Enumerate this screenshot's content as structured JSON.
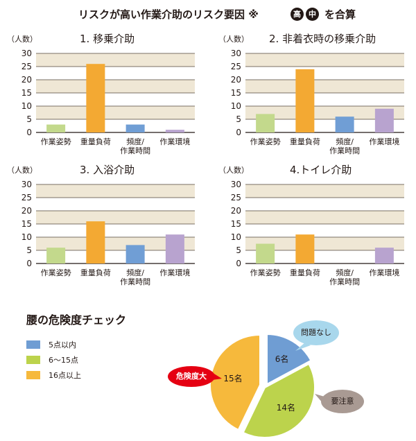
{
  "title": {
    "prefix": "リスクが高い作業介助のリスク要因 ※",
    "badge_high": "高",
    "badge_mid": "中",
    "suffix": "を合算"
  },
  "colors": {
    "band": "#efe7d5",
    "gridline": "#4f4337",
    "axis": "#231815",
    "posture": "#c3d98c",
    "weight": "#f3a933",
    "frequency": "#709ed5",
    "environment": "#b8a3cf",
    "pie_low": "#6f9dd3",
    "pie_mid": "#bcd34c",
    "pie_high": "#f6b93c",
    "callout_low": "#a8d7ec",
    "callout_mid": "#a99a93",
    "callout_high": "#e50012"
  },
  "chart_data": [
    {
      "type": "bar",
      "title": "1. 移乗介助",
      "ylabel": "（人数）",
      "ylim": [
        0,
        30
      ],
      "yticks": [
        0,
        5,
        10,
        15,
        20,
        25,
        30
      ],
      "categories": [
        "作業姿勢",
        "重量負荷",
        "頻度/作業時間",
        "作業環境"
      ],
      "category_lines": [
        [
          "作業姿勢"
        ],
        [
          "重量負荷"
        ],
        [
          "頻度/",
          "作業時間"
        ],
        [
          "作業環境"
        ]
      ],
      "values": [
        3,
        26,
        3,
        1
      ],
      "bar_colors": [
        "#c3d98c",
        "#f3a933",
        "#709ed5",
        "#b8a3cf"
      ],
      "grid": true
    },
    {
      "type": "bar",
      "title": "2. 非着衣時の移乗介助",
      "ylabel": "（人数）",
      "ylim": [
        0,
        30
      ],
      "yticks": [
        0,
        5,
        10,
        15,
        20,
        25,
        30
      ],
      "categories": [
        "作業姿勢",
        "重量負荷",
        "頻度/作業時間",
        "作業環境"
      ],
      "category_lines": [
        [
          "作業姿勢"
        ],
        [
          "重量負荷"
        ],
        [
          "頻度/",
          "作業時間"
        ],
        [
          "作業環境"
        ]
      ],
      "values": [
        7,
        24,
        6,
        9
      ],
      "bar_colors": [
        "#c3d98c",
        "#f3a933",
        "#709ed5",
        "#b8a3cf"
      ],
      "grid": true
    },
    {
      "type": "bar",
      "title": "3. 入浴介助",
      "ylabel": "（人数）",
      "ylim": [
        0,
        30
      ],
      "yticks": [
        0,
        5,
        10,
        15,
        20,
        25,
        30
      ],
      "categories": [
        "作業姿勢",
        "重量負荷",
        "頻度/作業時間",
        "作業環境"
      ],
      "category_lines": [
        [
          "作業姿勢"
        ],
        [
          "重量負荷"
        ],
        [
          "頻度/",
          "作業時間"
        ],
        [
          "作業環境"
        ]
      ],
      "values": [
        6,
        16,
        7,
        11
      ],
      "bar_colors": [
        "#c3d98c",
        "#f3a933",
        "#709ed5",
        "#b8a3cf"
      ],
      "grid": true
    },
    {
      "type": "bar",
      "title": "4.トイレ介助",
      "ylabel": "（人数）",
      "ylim": [
        0,
        30
      ],
      "yticks": [
        0,
        5,
        10,
        15,
        20,
        25,
        30
      ],
      "categories": [
        "作業姿勢",
        "重量負荷",
        "頻度/作業時間",
        "作業環境"
      ],
      "category_lines": [
        [
          "作業姿勢"
        ],
        [
          "重量負荷"
        ],
        [
          "頻度/",
          "作業時間"
        ],
        [
          "作業環境"
        ]
      ],
      "values": [
        7.5,
        11,
        0,
        6
      ],
      "bar_colors": [
        "#c3d98c",
        "#f3a933",
        "#709ed5",
        "#b8a3cf"
      ],
      "grid": true
    },
    {
      "type": "pie",
      "title": "腰の危険度チェック",
      "categories": [
        "5点以内",
        "6〜15点",
        "16点以上"
      ],
      "values": [
        6,
        14,
        15
      ],
      "value_labels": [
        "6名",
        "14名",
        "15名"
      ],
      "colors": [
        "#6f9dd3",
        "#bcd34c",
        "#f6b93c"
      ],
      "legend": "left",
      "callouts": [
        "問題なし",
        "要注意",
        "危険度大"
      ]
    }
  ]
}
